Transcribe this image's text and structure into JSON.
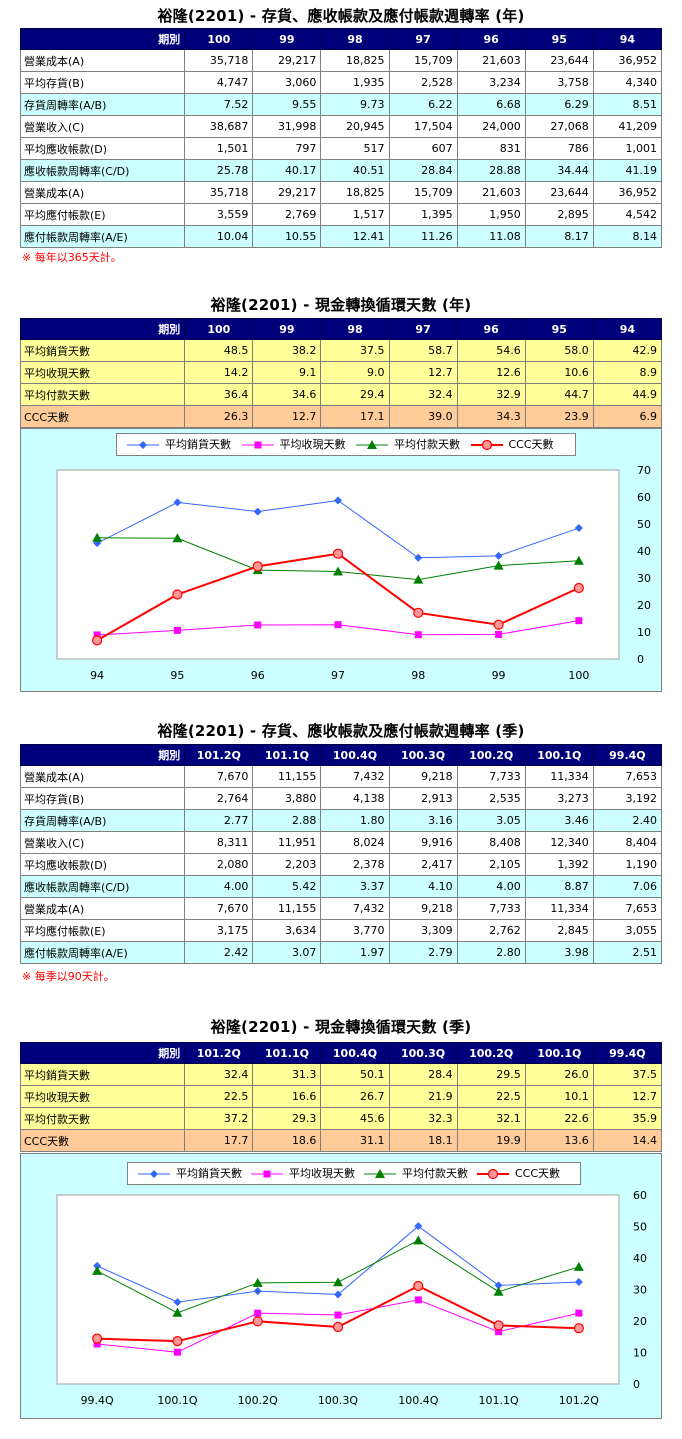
{
  "sections": {
    "annual_turnover": {
      "title": "裕隆(2201) - 存貨、應收帳款及應付帳款週轉率 (年)",
      "corner": "期別",
      "columns": [
        "100",
        "99",
        "98",
        "97",
        "96",
        "95",
        "94"
      ],
      "rows": [
        {
          "label": "營業成本(A)",
          "style": "white",
          "values": [
            "35,718",
            "29,217",
            "18,825",
            "15,709",
            "21,603",
            "23,644",
            "36,952"
          ]
        },
        {
          "label": "平均存貨(B)",
          "style": "white",
          "values": [
            "4,747",
            "3,060",
            "1,935",
            "2,528",
            "3,234",
            "3,758",
            "4,340"
          ]
        },
        {
          "label": "存貨周轉率(A/B)",
          "style": "cyan",
          "values": [
            "7.52",
            "9.55",
            "9.73",
            "6.22",
            "6.68",
            "6.29",
            "8.51"
          ]
        },
        {
          "label": "營業收入(C)",
          "style": "white",
          "values": [
            "38,687",
            "31,998",
            "20,945",
            "17,504",
            "24,000",
            "27,068",
            "41,209"
          ]
        },
        {
          "label": "平均應收帳款(D)",
          "style": "white",
          "values": [
            "1,501",
            "797",
            "517",
            "607",
            "831",
            "786",
            "1,001"
          ]
        },
        {
          "label": "應收帳款周轉率(C/D)",
          "style": "cyan",
          "values": [
            "25.78",
            "40.17",
            "40.51",
            "28.84",
            "28.88",
            "34.44",
            "41.19"
          ]
        },
        {
          "label": "營業成本(A)",
          "style": "white",
          "values": [
            "35,718",
            "29,217",
            "18,825",
            "15,709",
            "21,603",
            "23,644",
            "36,952"
          ]
        },
        {
          "label": "平均應付帳款(E)",
          "style": "white",
          "values": [
            "3,559",
            "2,769",
            "1,517",
            "1,395",
            "1,950",
            "2,895",
            "4,542"
          ]
        },
        {
          "label": "應付帳款周轉率(A/E)",
          "style": "cyan",
          "values": [
            "10.04",
            "10.55",
            "12.41",
            "11.26",
            "11.08",
            "8.17",
            "8.14"
          ]
        }
      ],
      "note": "※ 每年以365天計。"
    },
    "annual_ccc": {
      "title": "裕隆(2201) - 現金轉換循環天數 (年)",
      "corner": "期別",
      "columns": [
        "100",
        "99",
        "98",
        "97",
        "96",
        "95",
        "94"
      ],
      "rows": [
        {
          "label": "平均銷貨天數",
          "style": "yellow",
          "values": [
            "48.5",
            "38.2",
            "37.5",
            "58.7",
            "54.6",
            "58.0",
            "42.9"
          ]
        },
        {
          "label": "平均收現天數",
          "style": "yellow",
          "values": [
            "14.2",
            "9.1",
            "9.0",
            "12.7",
            "12.6",
            "10.6",
            "8.9"
          ]
        },
        {
          "label": "平均付款天數",
          "style": "yellow",
          "values": [
            "36.4",
            "34.6",
            "29.4",
            "32.4",
            "32.9",
            "44.7",
            "44.9"
          ]
        },
        {
          "label": "CCC天數",
          "style": "orange",
          "values": [
            "26.3",
            "12.7",
            "17.1",
            "39.0",
            "34.3",
            "23.9",
            "6.9"
          ]
        }
      ]
    },
    "quarterly_turnover": {
      "title": "裕隆(2201) - 存貨、應收帳款及應付帳款週轉率 (季)",
      "corner": "期別",
      "columns": [
        "101.2Q",
        "101.1Q",
        "100.4Q",
        "100.3Q",
        "100.2Q",
        "100.1Q",
        "99.4Q"
      ],
      "rows": [
        {
          "label": "營業成本(A)",
          "style": "white",
          "values": [
            "7,670",
            "11,155",
            "7,432",
            "9,218",
            "7,733",
            "11,334",
            "7,653"
          ]
        },
        {
          "label": "平均存貨(B)",
          "style": "white",
          "values": [
            "2,764",
            "3,880",
            "4,138",
            "2,913",
            "2,535",
            "3,273",
            "3,192"
          ]
        },
        {
          "label": "存貨周轉率(A/B)",
          "style": "cyan",
          "values": [
            "2.77",
            "2.88",
            "1.80",
            "3.16",
            "3.05",
            "3.46",
            "2.40"
          ]
        },
        {
          "label": "營業收入(C)",
          "style": "white",
          "values": [
            "8,311",
            "11,951",
            "8,024",
            "9,916",
            "8,408",
            "12,340",
            "8,404"
          ]
        },
        {
          "label": "平均應收帳款(D)",
          "style": "white",
          "values": [
            "2,080",
            "2,203",
            "2,378",
            "2,417",
            "2,105",
            "1,392",
            "1,190"
          ]
        },
        {
          "label": "應收帳款周轉率(C/D)",
          "style": "cyan",
          "values": [
            "4.00",
            "5.42",
            "3.37",
            "4.10",
            "4.00",
            "8.87",
            "7.06"
          ]
        },
        {
          "label": "營業成本(A)",
          "style": "white",
          "values": [
            "7,670",
            "11,155",
            "7,432",
            "9,218",
            "7,733",
            "11,334",
            "7,653"
          ]
        },
        {
          "label": "平均應付帳款(E)",
          "style": "white",
          "values": [
            "3,175",
            "3,634",
            "3,770",
            "3,309",
            "2,762",
            "2,845",
            "3,055"
          ]
        },
        {
          "label": "應付帳款周轉率(A/E)",
          "style": "cyan",
          "values": [
            "2.42",
            "3.07",
            "1.97",
            "2.79",
            "2.80",
            "3.98",
            "2.51"
          ]
        }
      ],
      "note": "※ 每季以90天計。"
    },
    "quarterly_ccc": {
      "title": "裕隆(2201) - 現金轉換循環天數 (季)",
      "corner": "期別",
      "columns": [
        "101.2Q",
        "101.1Q",
        "100.4Q",
        "100.3Q",
        "100.2Q",
        "100.1Q",
        "99.4Q"
      ],
      "rows": [
        {
          "label": "平均銷貨天數",
          "style": "yellow",
          "values": [
            "32.4",
            "31.3",
            "50.1",
            "28.4",
            "29.5",
            "26.0",
            "37.5"
          ]
        },
        {
          "label": "平均收現天數",
          "style": "yellow",
          "values": [
            "22.5",
            "16.6",
            "26.7",
            "21.9",
            "22.5",
            "10.1",
            "12.7"
          ]
        },
        {
          "label": "平均付款天數",
          "style": "yellow",
          "values": [
            "37.2",
            "29.3",
            "45.6",
            "32.3",
            "32.1",
            "22.6",
            "35.9"
          ]
        },
        {
          "label": "CCC天數",
          "style": "orange",
          "values": [
            "17.7",
            "18.6",
            "31.1",
            "18.1",
            "19.9",
            "13.6",
            "14.4"
          ]
        }
      ]
    }
  },
  "colors": {
    "header_bg": "#00007a",
    "row_white": "#ffffff",
    "row_cyan": "#ccffff",
    "row_yellow": "#ffff99",
    "row_orange": "#ffcc99",
    "chart_bg": "#ccffff",
    "note_red": "#ff0000"
  },
  "chart_data": [
    {
      "type": "line",
      "x": [
        "94",
        "95",
        "96",
        "97",
        "98",
        "99",
        "100"
      ],
      "ylim": [
        0,
        70
      ],
      "yticks": [
        0,
        10,
        20,
        30,
        40,
        50,
        60,
        70
      ],
      "grid": false,
      "y_axis_side": "right",
      "legend_position": "top",
      "series": [
        {
          "name": "平均銷貨天數",
          "color": "#3366ff",
          "marker": "diamond",
          "values": [
            42.9,
            58.0,
            54.6,
            58.7,
            37.5,
            38.2,
            48.5
          ]
        },
        {
          "name": "平均收現天數",
          "color": "#ff00ff",
          "marker": "square",
          "values": [
            8.9,
            10.6,
            12.6,
            12.7,
            9.0,
            9.1,
            14.2
          ]
        },
        {
          "name": "平均付款天數",
          "color": "#008000",
          "marker": "triangle",
          "values": [
            44.9,
            44.7,
            32.9,
            32.4,
            29.4,
            34.6,
            36.4
          ]
        },
        {
          "name": "CCC天數",
          "color": "#ff0000",
          "marker": "circle",
          "values": [
            6.9,
            23.9,
            34.3,
            39.0,
            17.1,
            12.7,
            26.3
          ]
        }
      ]
    },
    {
      "type": "line",
      "x": [
        "99.4Q",
        "100.1Q",
        "100.2Q",
        "100.3Q",
        "100.4Q",
        "101.1Q",
        "101.2Q"
      ],
      "ylim": [
        0,
        60
      ],
      "yticks": [
        0,
        10,
        20,
        30,
        40,
        50,
        60
      ],
      "grid": false,
      "y_axis_side": "right",
      "legend_position": "top",
      "series": [
        {
          "name": "平均銷貨天數",
          "color": "#3366ff",
          "marker": "diamond",
          "values": [
            37.5,
            26.0,
            29.5,
            28.4,
            50.1,
            31.3,
            32.4
          ]
        },
        {
          "name": "平均收現天數",
          "color": "#ff00ff",
          "marker": "square",
          "values": [
            12.7,
            10.1,
            22.5,
            21.9,
            26.7,
            16.6,
            22.5
          ]
        },
        {
          "name": "平均付款天數",
          "color": "#008000",
          "marker": "triangle",
          "values": [
            35.9,
            22.6,
            32.1,
            32.3,
            45.6,
            29.3,
            37.2
          ]
        },
        {
          "name": "CCC天數",
          "color": "#ff0000",
          "marker": "circle",
          "values": [
            14.4,
            13.6,
            19.9,
            18.1,
            31.1,
            18.6,
            17.7
          ]
        }
      ]
    }
  ]
}
